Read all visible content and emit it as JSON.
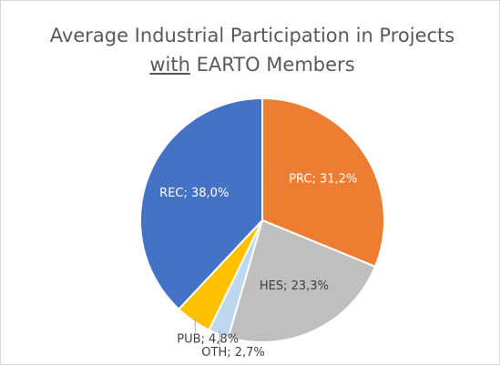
{
  "chart_data": {
    "type": "pie",
    "title": [
      "Average Industrial Participation in Projects",
      "with EARTO Members"
    ],
    "title_underlined_word": "with",
    "categories": [
      "PRC",
      "HES",
      "OTH",
      "PUB",
      "REC"
    ],
    "values": [
      31.2,
      23.3,
      2.7,
      4.8,
      38.0
    ],
    "value_labels": [
      "PRC; 31,2%",
      "HES; 23,3%",
      "OTH; 2,7%",
      "PUB; 4,8%",
      "REC; 38,0%"
    ],
    "colors": [
      "#ed7d31",
      "#bfbfbf",
      "#bdd7ee",
      "#ffc000",
      "#4472c4"
    ]
  }
}
